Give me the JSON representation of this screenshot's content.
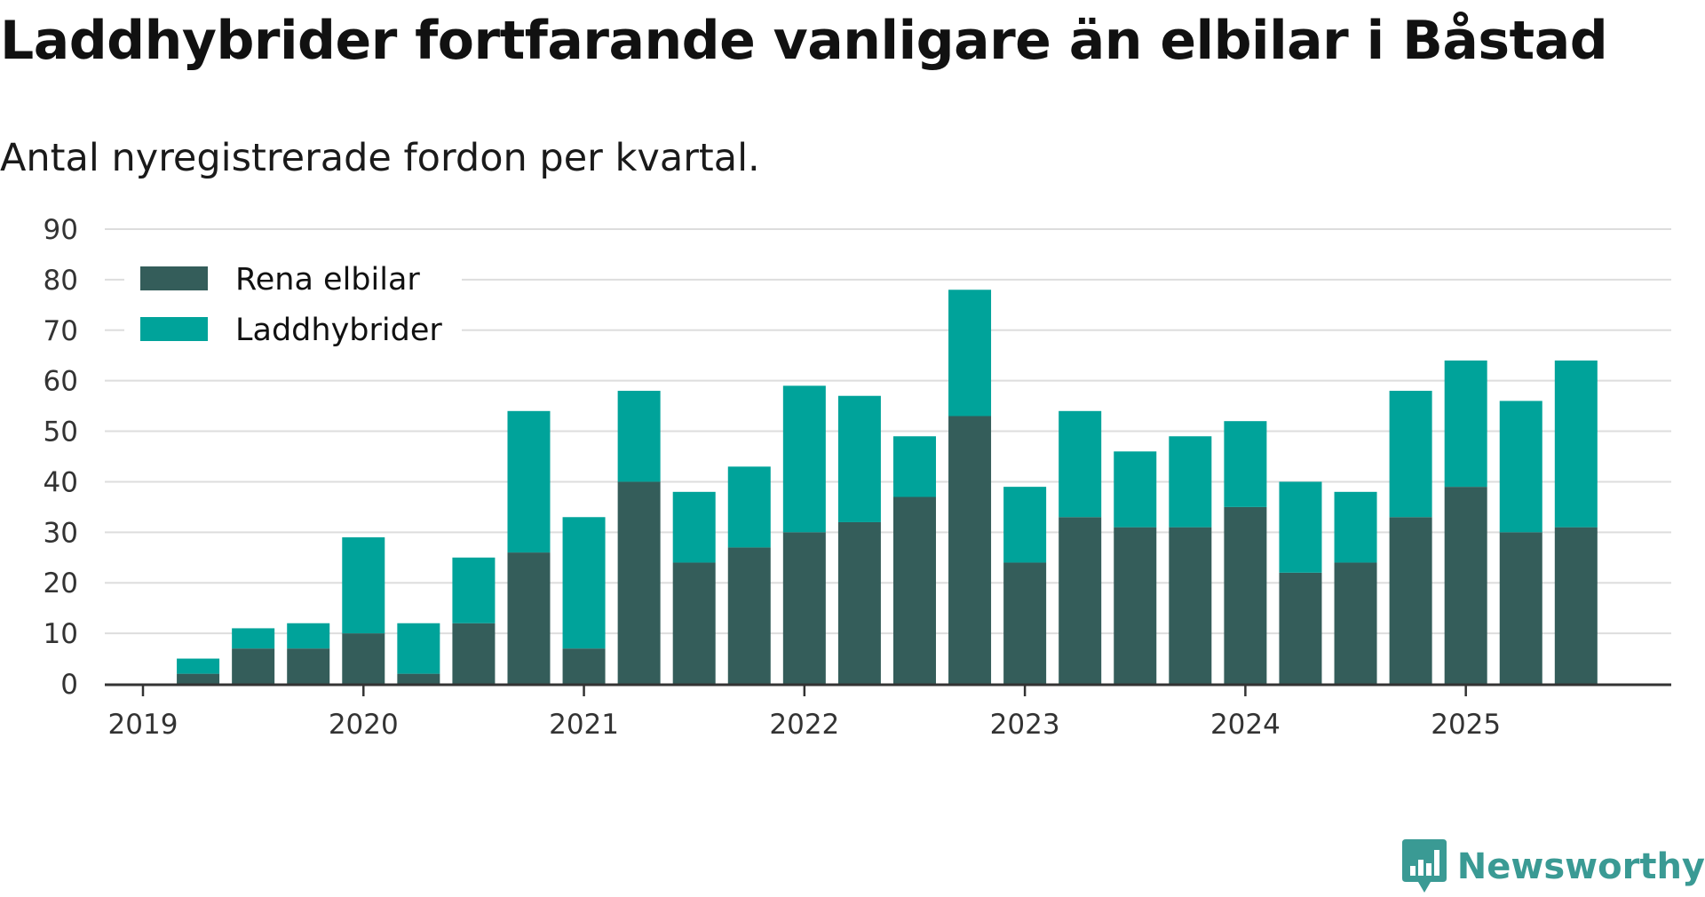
{
  "colors": {
    "rena": "#345d5a",
    "ladd": "#00a39a",
    "grid": "#dddddd",
    "axis": "#333333",
    "logo": "#3a9a94"
  },
  "brand": {
    "name": "Newsworthy",
    "icon": "bar-chart-speech-bubble-icon"
  },
  "chart_data": {
    "type": "bar",
    "stacked": true,
    "title": "Laddhybrider fortfarande vanligare än elbilar i Båstad",
    "subtitle": "Antal nyregistrerade fordon per kvartal.",
    "xlabel": "",
    "ylabel": "",
    "ylim": [
      0,
      90
    ],
    "yticks": [
      0,
      10,
      20,
      30,
      40,
      50,
      60,
      70,
      80,
      90
    ],
    "grid": true,
    "legend_position": "top-left",
    "year_labels": [
      "2019",
      "2020",
      "2021",
      "2022",
      "2023",
      "2024",
      "2025"
    ],
    "categories": [
      "2019 Q1",
      "2019 Q2",
      "2019 Q3",
      "2019 Q4",
      "2020 Q1",
      "2020 Q2",
      "2020 Q3",
      "2020 Q4",
      "2021 Q1",
      "2021 Q2",
      "2021 Q3",
      "2021 Q4",
      "2022 Q1",
      "2022 Q2",
      "2022 Q3",
      "2022 Q4",
      "2023 Q1",
      "2023 Q2",
      "2023 Q3",
      "2023 Q4",
      "2024 Q1",
      "2024 Q2",
      "2024 Q3",
      "2024 Q4",
      "2025 Q1",
      "2025 Q2",
      "2025 Q3"
    ],
    "series": [
      {
        "name": "Rena elbilar",
        "values": [
          0,
          2,
          7,
          7,
          10,
          2,
          12,
          26,
          7,
          40,
          24,
          27,
          30,
          32,
          37,
          53,
          24,
          33,
          31,
          31,
          35,
          22,
          24,
          33,
          39,
          30,
          31
        ]
      },
      {
        "name": "Laddhybrider",
        "values": [
          0,
          3,
          4,
          5,
          19,
          10,
          13,
          28,
          26,
          18,
          14,
          16,
          29,
          25,
          12,
          25,
          15,
          21,
          15,
          18,
          17,
          18,
          14,
          25,
          25,
          26,
          33
        ]
      }
    ]
  }
}
